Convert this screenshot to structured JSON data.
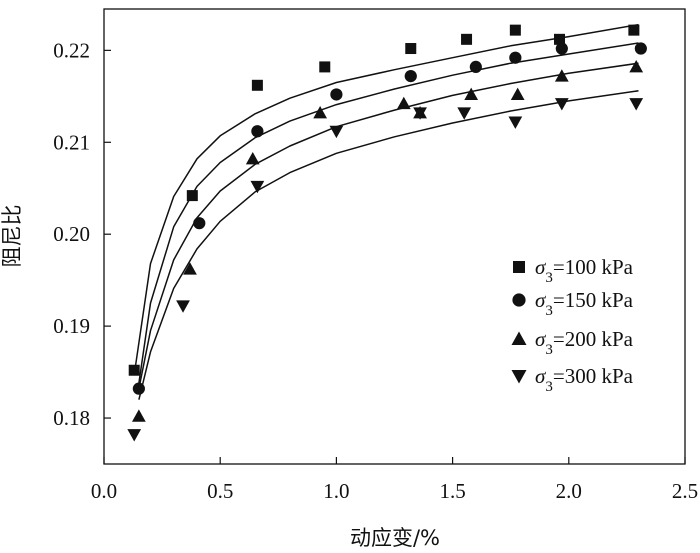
{
  "chart_data": {
    "type": "scatter",
    "title": "",
    "xlabel": "动应变/%",
    "ylabel": "阻尼比",
    "xlim": [
      0.0,
      2.5
    ],
    "ylim": [
      0.175,
      0.2245
    ],
    "xticks": [
      0.0,
      0.5,
      1.0,
      1.5,
      2.0,
      2.5
    ],
    "xtick_labels": [
      "0.0",
      "0.5",
      "1.0",
      "1.5",
      "2.0",
      "2.5"
    ],
    "yticks": [
      0.18,
      0.19,
      0.2,
      0.21,
      0.22
    ],
    "ytick_labels": [
      "0.18",
      "0.19",
      "0.20",
      "0.21",
      "0.22"
    ],
    "legend_position": "right",
    "series": [
      {
        "name": "σ3=100 kPa",
        "legend_symbol": "σ",
        "legend_sub": "3",
        "legend_value": "=100 kPa",
        "marker": "square",
        "x": [
          0.13,
          0.38,
          0.66,
          0.95,
          1.32,
          1.56,
          1.77,
          1.96,
          2.28
        ],
        "y": [
          0.1852,
          0.2042,
          0.2162,
          0.2182,
          0.2202,
          0.2212,
          0.2222,
          0.2212,
          0.2222
        ],
        "fit": [
          [
            0.13,
            0.1847
          ],
          [
            0.2,
            0.1968
          ],
          [
            0.3,
            0.2041
          ],
          [
            0.4,
            0.2082
          ],
          [
            0.5,
            0.2107
          ],
          [
            0.65,
            0.2131
          ],
          [
            0.8,
            0.2148
          ],
          [
            1.0,
            0.2165
          ],
          [
            1.25,
            0.2179
          ],
          [
            1.5,
            0.2192
          ],
          [
            1.75,
            0.2205
          ],
          [
            2.0,
            0.2215
          ],
          [
            2.3,
            0.2228
          ]
        ]
      },
      {
        "name": "σ3=150 kPa",
        "legend_symbol": "σ",
        "legend_sub": "3",
        "legend_value": "=150 kPa",
        "marker": "circle",
        "x": [
          0.15,
          0.41,
          0.66,
          1.0,
          1.32,
          1.6,
          1.77,
          1.97,
          2.31
        ],
        "y": [
          0.1832,
          0.2012,
          0.2112,
          0.2152,
          0.2172,
          0.2182,
          0.2192,
          0.2202,
          0.2202
        ],
        "fit": [
          [
            0.15,
            0.1838
          ],
          [
            0.2,
            0.1925
          ],
          [
            0.3,
            0.2008
          ],
          [
            0.4,
            0.2052
          ],
          [
            0.5,
            0.2078
          ],
          [
            0.65,
            0.2105
          ],
          [
            0.8,
            0.2123
          ],
          [
            1.0,
            0.2141
          ],
          [
            1.25,
            0.2158
          ],
          [
            1.5,
            0.2173
          ],
          [
            1.75,
            0.2186
          ],
          [
            2.0,
            0.2196
          ],
          [
            2.3,
            0.2208
          ]
        ]
      },
      {
        "name": "σ3=200 kPa",
        "legend_symbol": "σ",
        "legend_sub": "3",
        "legend_value": "=200 kPa",
        "marker": "triangle-up",
        "x": [
          0.15,
          0.37,
          0.64,
          0.93,
          1.29,
          1.36,
          1.58,
          1.78,
          1.97,
          2.29
        ],
        "y": [
          0.1802,
          0.1962,
          0.2082,
          0.2132,
          0.2142,
          0.2132,
          0.2152,
          0.2152,
          0.2172,
          0.2182
        ],
        "fit": [
          [
            0.15,
            0.1832
          ],
          [
            0.2,
            0.1895
          ],
          [
            0.3,
            0.1972
          ],
          [
            0.4,
            0.2018
          ],
          [
            0.5,
            0.2047
          ],
          [
            0.65,
            0.2076
          ],
          [
            0.8,
            0.2096
          ],
          [
            1.0,
            0.2117
          ],
          [
            1.25,
            0.2135
          ],
          [
            1.5,
            0.2151
          ],
          [
            1.75,
            0.2164
          ],
          [
            2.0,
            0.2175
          ],
          [
            2.3,
            0.2186
          ]
        ]
      },
      {
        "name": "σ3=300 kPa",
        "legend_symbol": "σ",
        "legend_sub": "3",
        "legend_value": "=300 kPa",
        "marker": "triangle-down",
        "x": [
          0.13,
          0.34,
          0.66,
          1.0,
          1.36,
          1.55,
          1.77,
          1.97,
          2.29
        ],
        "y": [
          0.1782,
          0.1922,
          0.2052,
          0.2112,
          0.2132,
          0.2132,
          0.2122,
          0.2142,
          0.2142
        ],
        "fit": [
          [
            0.15,
            0.182
          ],
          [
            0.2,
            0.1872
          ],
          [
            0.3,
            0.1941
          ],
          [
            0.4,
            0.1984
          ],
          [
            0.5,
            0.2014
          ],
          [
            0.65,
            0.2046
          ],
          [
            0.8,
            0.2067
          ],
          [
            1.0,
            0.2088
          ],
          [
            1.25,
            0.2106
          ],
          [
            1.5,
            0.2121
          ],
          [
            1.75,
            0.2134
          ],
          [
            2.0,
            0.2145
          ],
          [
            2.3,
            0.2156
          ]
        ]
      }
    ]
  }
}
